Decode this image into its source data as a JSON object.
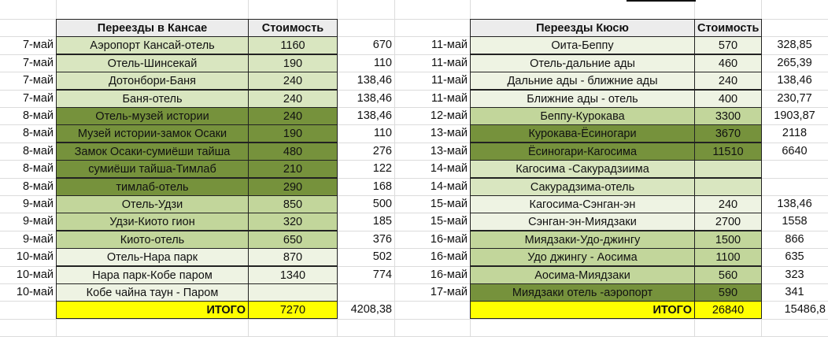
{
  "colors": {
    "header_bg": "#ececec",
    "lightest_green": "#eef3e3",
    "light_green": "#d9e6c0",
    "medium_green": "#c2d69b",
    "dark_green": "#76923c",
    "total_yellow": "#ffff00",
    "gridline": "#dcdcdc"
  },
  "left_table": {
    "header_route": "Переезды в Кансае",
    "header_cost": "Стоимость",
    "rows": [
      {
        "date": "7-май",
        "route": "Аэропорт Кансай-отель",
        "cost": "1160",
        "converted": "670",
        "shade": "g1"
      },
      {
        "date": "7-май",
        "route": "Отель-Шинсекай",
        "cost": "190",
        "converted": "110",
        "shade": "g1"
      },
      {
        "date": "7-май",
        "route": "Дотонбори-Баня",
        "cost": "240",
        "converted": "138,46",
        "shade": "g1"
      },
      {
        "date": "7-май",
        "route": "Баня-отель",
        "cost": "240",
        "converted": "138,46",
        "shade": "g1"
      },
      {
        "date": "8-май",
        "route": "Отель-музей истории",
        "cost": "240",
        "converted": "138,46",
        "shade": "g3"
      },
      {
        "date": "8-май",
        "route": "Музей истории-замок Осаки",
        "cost": "190",
        "converted": "110",
        "shade": "g3"
      },
      {
        "date": "8-май",
        "route": "Замок Осаки-сумиёши тайша",
        "cost": "480",
        "converted": "276",
        "shade": "g3"
      },
      {
        "date": "8-май",
        "route": "сумиёши тайша-Тимлаб",
        "cost": "210",
        "converted": "122",
        "shade": "g3"
      },
      {
        "date": "8-май",
        "route": "тимлаб-отель",
        "cost": "290",
        "converted": "168",
        "shade": "g3"
      },
      {
        "date": "9-май",
        "route": "Отель-Удзи",
        "cost": "850",
        "converted": "500",
        "shade": "g2"
      },
      {
        "date": "9-май",
        "route": "Удзи-Киото гион",
        "cost": "320",
        "converted": "185",
        "shade": "g2"
      },
      {
        "date": "9-май",
        "route": "Киото-отель",
        "cost": "650",
        "converted": "376",
        "shade": "g2"
      },
      {
        "date": "10-май",
        "route": "Отель-Нара парк",
        "cost": "870",
        "converted": "502",
        "shade": "g0"
      },
      {
        "date": "10-май",
        "route": "Нара парк-Кобе паром",
        "cost": "1340",
        "converted": "774",
        "shade": "g0"
      },
      {
        "date": "10-май",
        "route": "Кобе чайна таун - Паром",
        "cost": "",
        "converted": "",
        "shade": "g0"
      }
    ],
    "total_label": "ИТОГО",
    "total_cost": "7270",
    "total_converted": "4208,38"
  },
  "right_table": {
    "header_route": "Переезды Кюсю",
    "header_cost": "Стоимость",
    "rows": [
      {
        "date": "11-май",
        "route": "Оита-Беппу",
        "cost": "570",
        "converted": "328,85",
        "shade": "g0"
      },
      {
        "date": "11-май",
        "route": "Отель-дальние ады",
        "cost": "460",
        "converted": "265,39",
        "shade": "g0"
      },
      {
        "date": "11-май",
        "route": "Дальние ады - ближние ады",
        "cost": "240",
        "converted": "138,46",
        "shade": "g0"
      },
      {
        "date": "11-май",
        "route": "Ближние  ады - отель",
        "cost": "400",
        "converted": "230,77",
        "shade": "g0"
      },
      {
        "date": "12-май",
        "route": "Беппу-Курокава",
        "cost": "3300",
        "converted": "1903,87",
        "shade": "g2"
      },
      {
        "date": "13-май",
        "route": "Курокава-Ёсиногари",
        "cost": "3670",
        "converted": "2118",
        "shade": "g3"
      },
      {
        "date": "13-май",
        "route": "Ёсиногари-Кагосима",
        "cost": "11510",
        "converted": "6640",
        "shade": "g3"
      },
      {
        "date": "14-май",
        "route": "Кагосима -Сакурадзиима",
        "cost": "",
        "converted": "",
        "shade": "g1"
      },
      {
        "date": "14-май",
        "route": "Сакурадзима-отель",
        "cost": "",
        "converted": "",
        "shade": "g1"
      },
      {
        "date": "15-май",
        "route": "Кагосима-Сэнган-эн",
        "cost": "240",
        "converted": "138,46",
        "shade": "g0"
      },
      {
        "date": "15-май",
        "route": "Сэнган-эн-Миядзаки",
        "cost": "2700",
        "converted": "1558",
        "shade": "g0"
      },
      {
        "date": "16-май",
        "route": "Миядзаки-Удо-джингу",
        "cost": "1500",
        "converted": "866",
        "shade": "g2"
      },
      {
        "date": "16-май",
        "route": "Удо джингу - Аосима",
        "cost": "1100",
        "converted": "635",
        "shade": "g2"
      },
      {
        "date": "16-май",
        "route": "Аосима-Миядзаки",
        "cost": "560",
        "converted": "323",
        "shade": "g2"
      },
      {
        "date": "17-май",
        "route": "Миядзаки отель -аэропорт",
        "cost": "590",
        "converted": "341",
        "shade": "g3"
      }
    ],
    "total_label": "ИТОГО",
    "total_cost": "26840",
    "total_converted": "15486,8"
  }
}
